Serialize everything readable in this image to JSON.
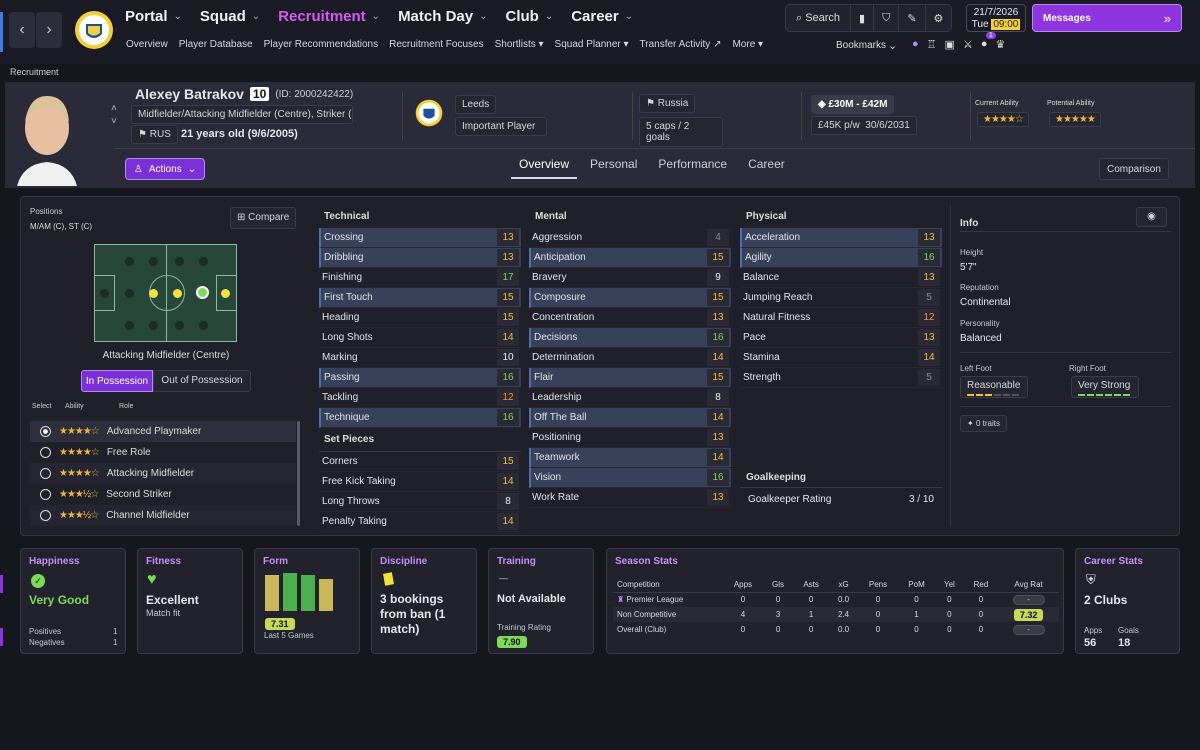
{
  "nav": {
    "main": [
      {
        "label": "Portal",
        "active": false
      },
      {
        "label": "Squad",
        "active": false
      },
      {
        "label": "Recruitment",
        "active": true
      },
      {
        "label": "Match Day",
        "active": false
      },
      {
        "label": "Club",
        "active": false
      },
      {
        "label": "Career",
        "active": false
      }
    ],
    "sub": [
      "Overview",
      "Player Database",
      "Player Recommendations",
      "Recruitment Focuses",
      "Shortlists",
      "Squad Planner",
      "Transfer Activity",
      "More"
    ],
    "search_label": "Search",
    "bookmarks_label": "Bookmarks",
    "notification_count": "1",
    "date": "21/7/2026",
    "day": "Tue",
    "time": "09:00",
    "messages_label": "Messages"
  },
  "breadcrumb": "Recruitment",
  "player": {
    "name": "Alexey Batrakov",
    "number": "10",
    "id_text": "(ID: 2000242422)",
    "positions": "Midfielder/Attacking Midfielder (Centre), Striker (...",
    "nationality_code": "RUS",
    "age": "21 years old (9/6/2005)",
    "club": "Leeds",
    "club_status": "Important Player",
    "nation": "Russia",
    "caps": "5 caps / 2 goals",
    "value": "£30M - £42M",
    "wage": "£45K p/w",
    "contract": "30/6/2031",
    "ca_label": "Current Ability",
    "pa_label": "Potential Ability",
    "ca_stars": 3.5,
    "pa_stars": 4.5
  },
  "actions_label": "Actions",
  "tabs": [
    "Overview",
    "Personal",
    "Performance",
    "Career"
  ],
  "comparison_label": "Comparison",
  "positions_panel": {
    "title": "Positions",
    "short": "M/AM (C), ST (C)",
    "compare_label": "Compare",
    "role_name": "Attacking Midfielder (Centre)",
    "in_possession": "In Possession",
    "out_possession": "Out of Possession",
    "col_select": "Select",
    "col_ability": "Ability",
    "col_role": "Role",
    "roles": [
      {
        "name": "Advanced Playmaker",
        "stars": "★★★★☆",
        "selected": true
      },
      {
        "name": "Free Role",
        "stars": "★★★★☆",
        "selected": false
      },
      {
        "name": "Attacking Midfielder",
        "stars": "★★★★☆",
        "selected": false
      },
      {
        "name": "Second Striker",
        "stars": "★★★½☆",
        "selected": false
      },
      {
        "name": "Channel Midfielder",
        "stars": "★★★½☆",
        "selected": false
      }
    ]
  },
  "attributes": {
    "technical_title": "Technical",
    "technical": [
      {
        "name": "Crossing",
        "value": "13",
        "tone": "yellow",
        "hl": true
      },
      {
        "name": "Dribbling",
        "value": "13",
        "tone": "yellow",
        "hl": true
      },
      {
        "name": "Finishing",
        "value": "17",
        "tone": "green",
        "hl": false
      },
      {
        "name": "First Touch",
        "value": "15",
        "tone": "yellow",
        "hl": true
      },
      {
        "name": "Heading",
        "value": "15",
        "tone": "yellow",
        "hl": false
      },
      {
        "name": "Long Shots",
        "value": "14",
        "tone": "yellow",
        "hl": false
      },
      {
        "name": "Marking",
        "value": "10",
        "tone": "white",
        "hl": false
      },
      {
        "name": "Passing",
        "value": "16",
        "tone": "green",
        "hl": true
      },
      {
        "name": "Tackling",
        "value": "12",
        "tone": "orange",
        "hl": false
      },
      {
        "name": "Technique",
        "value": "16",
        "tone": "green",
        "hl": true
      }
    ],
    "setpieces_title": "Set Pieces",
    "setpieces": [
      {
        "name": "Corners",
        "value": "15",
        "tone": "yellow",
        "hl": false
      },
      {
        "name": "Free Kick Taking",
        "value": "14",
        "tone": "yellow",
        "hl": false
      },
      {
        "name": "Long Throws",
        "value": "8",
        "tone": "white",
        "hl": false
      },
      {
        "name": "Penalty Taking",
        "value": "14",
        "tone": "yellow",
        "hl": false
      }
    ],
    "mental_title": "Mental",
    "mental": [
      {
        "name": "Aggression",
        "value": "4",
        "tone": "grey",
        "hl": false
      },
      {
        "name": "Anticipation",
        "value": "15",
        "tone": "yellow",
        "hl": true
      },
      {
        "name": "Bravery",
        "value": "9",
        "tone": "white",
        "hl": false
      },
      {
        "name": "Composure",
        "value": "15",
        "tone": "yellow",
        "hl": true
      },
      {
        "name": "Concentration",
        "value": "13",
        "tone": "yellow",
        "hl": false
      },
      {
        "name": "Decisions",
        "value": "16",
        "tone": "green",
        "hl": true
      },
      {
        "name": "Determination",
        "value": "14",
        "tone": "yellow",
        "hl": false
      },
      {
        "name": "Flair",
        "value": "15",
        "tone": "yellow",
        "hl": true
      },
      {
        "name": "Leadership",
        "value": "8",
        "tone": "white",
        "hl": false
      },
      {
        "name": "Off The Ball",
        "value": "14",
        "tone": "yellow",
        "hl": true
      },
      {
        "name": "Positioning",
        "value": "13",
        "tone": "yellow",
        "hl": false
      },
      {
        "name": "Teamwork",
        "value": "14",
        "tone": "yellow",
        "hl": true
      },
      {
        "name": "Vision",
        "value": "16",
        "tone": "green",
        "hl": true
      },
      {
        "name": "Work Rate",
        "value": "13",
        "tone": "yellow",
        "hl": false
      }
    ],
    "physical_title": "Physical",
    "physical": [
      {
        "name": "Acceleration",
        "value": "13",
        "tone": "yellow",
        "hl": true
      },
      {
        "name": "Agility",
        "value": "16",
        "tone": "green",
        "hl": true
      },
      {
        "name": "Balance",
        "value": "13",
        "tone": "yellow",
        "hl": false
      },
      {
        "name": "Jumping Reach",
        "value": "5",
        "tone": "grey",
        "hl": false
      },
      {
        "name": "Natural Fitness",
        "value": "12",
        "tone": "orange",
        "hl": false
      },
      {
        "name": "Pace",
        "value": "13",
        "tone": "yellow",
        "hl": false
      },
      {
        "name": "Stamina",
        "value": "14",
        "tone": "yellow",
        "hl": false
      },
      {
        "name": "Strength",
        "value": "5",
        "tone": "grey",
        "hl": false
      }
    ],
    "gk_title": "Goalkeeping",
    "gk_label": "Goalkeeper Rating",
    "gk_value": "3 / 10"
  },
  "info": {
    "title": "Info",
    "height_label": "Height",
    "height": "5'7\"",
    "rep_label": "Reputation",
    "rep": "Continental",
    "pers_label": "Personality",
    "pers": "Balanced",
    "lf_label": "Left Foot",
    "lf": "Reasonable",
    "rf_label": "Right Foot",
    "rf": "Very Strong",
    "traits": "0 traits"
  },
  "cards": {
    "happiness": {
      "title": "Happiness",
      "value": "Very Good",
      "pos_label": "Positives",
      "pos": "1",
      "neg_label": "Negatives",
      "neg": "1"
    },
    "fitness": {
      "title": "Fitness",
      "value": "Excellent",
      "sub": "Match fit"
    },
    "form": {
      "title": "Form",
      "rating": "7.31",
      "sub": "Last 5 Games"
    },
    "discipline": {
      "title": "Discipline",
      "value": "3 bookings from ban (1 match)"
    },
    "training": {
      "title": "Training",
      "dash": "—",
      "value": "Not Available",
      "rating_label": "Training Rating",
      "rating": "7.90"
    },
    "season": {
      "title": "Season Stats",
      "headers": [
        "Competition",
        "Apps",
        "Gls",
        "Asts",
        "xG",
        "Pens",
        "PoM",
        "Yel",
        "Red",
        "Avg Rat"
      ],
      "rows": [
        [
          "Premier League",
          "0",
          "0",
          "0",
          "0.0",
          "0",
          "0",
          "0",
          "0",
          "-"
        ],
        [
          "Non Competitive",
          "4",
          "3",
          "1",
          "2.4",
          "0",
          "1",
          "0",
          "0",
          "7.32"
        ],
        [
          "Overall (Club)",
          "0",
          "0",
          "0",
          "0.0",
          "0",
          "0",
          "0",
          "0",
          "-"
        ]
      ]
    },
    "career": {
      "title": "Career Stats",
      "value": "2 Clubs",
      "apps_label": "Apps",
      "apps": "56",
      "goals_label": "Goals",
      "goals": "18"
    }
  },
  "colors": {
    "accent": "#d45cf2",
    "good": "#7ed957",
    "warn": "#f2c23a"
  }
}
